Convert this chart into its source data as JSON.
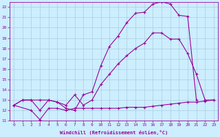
{
  "xlabel": "Windchill (Refroidissement éolien,°C)",
  "background_color": "#cceeff",
  "grid_color": "#aaccdd",
  "line_color": "#990099",
  "xlim": [
    -0.5,
    23.5
  ],
  "ylim": [
    11.0,
    22.5
  ],
  "xticks": [
    0,
    1,
    2,
    3,
    4,
    5,
    6,
    7,
    8,
    9,
    10,
    11,
    12,
    13,
    14,
    15,
    16,
    17,
    18,
    19,
    20,
    21,
    22,
    23
  ],
  "yticks": [
    11,
    12,
    13,
    14,
    15,
    16,
    17,
    18,
    19,
    20,
    21,
    22
  ],
  "curve1_x": [
    0,
    1,
    2,
    3,
    4,
    5,
    6,
    7,
    8,
    9,
    10,
    11,
    12,
    13,
    14,
    15,
    16,
    17,
    18,
    19,
    20,
    21
  ],
  "curve1_y": [
    12.5,
    13.0,
    13.0,
    12.0,
    13.0,
    12.8,
    12.2,
    12.0,
    13.5,
    13.8,
    16.3,
    18.2,
    19.2,
    20.5,
    21.4,
    21.5,
    22.3,
    22.5,
    22.3,
    21.2,
    21.1,
    13.0
  ],
  "curve2_x": [
    0,
    2,
    3,
    4,
    5,
    6,
    7,
    8,
    9,
    10,
    11,
    12,
    13,
    14,
    15,
    16,
    17,
    18,
    19,
    20,
    21,
    22,
    23
  ],
  "curve2_y": [
    12.5,
    12.0,
    11.1,
    12.2,
    12.2,
    12.0,
    12.2,
    12.2,
    12.2,
    12.2,
    12.2,
    12.2,
    12.3,
    12.3,
    12.3,
    12.4,
    12.5,
    12.6,
    12.7,
    12.8,
    12.8,
    12.9,
    13.0
  ],
  "curve3_x": [
    0,
    1,
    2,
    3,
    4,
    5,
    6,
    7,
    8,
    9,
    10,
    11,
    12,
    13,
    14,
    15,
    16,
    17,
    18,
    19,
    20,
    21,
    22,
    23
  ],
  "curve3_y": [
    12.5,
    13.0,
    13.0,
    13.0,
    13.0,
    12.8,
    12.5,
    13.5,
    12.5,
    13.0,
    14.5,
    15.5,
    16.5,
    17.3,
    18.0,
    18.5,
    19.5,
    19.5,
    18.9,
    18.9,
    17.5,
    15.5,
    13.0,
    13.0
  ]
}
